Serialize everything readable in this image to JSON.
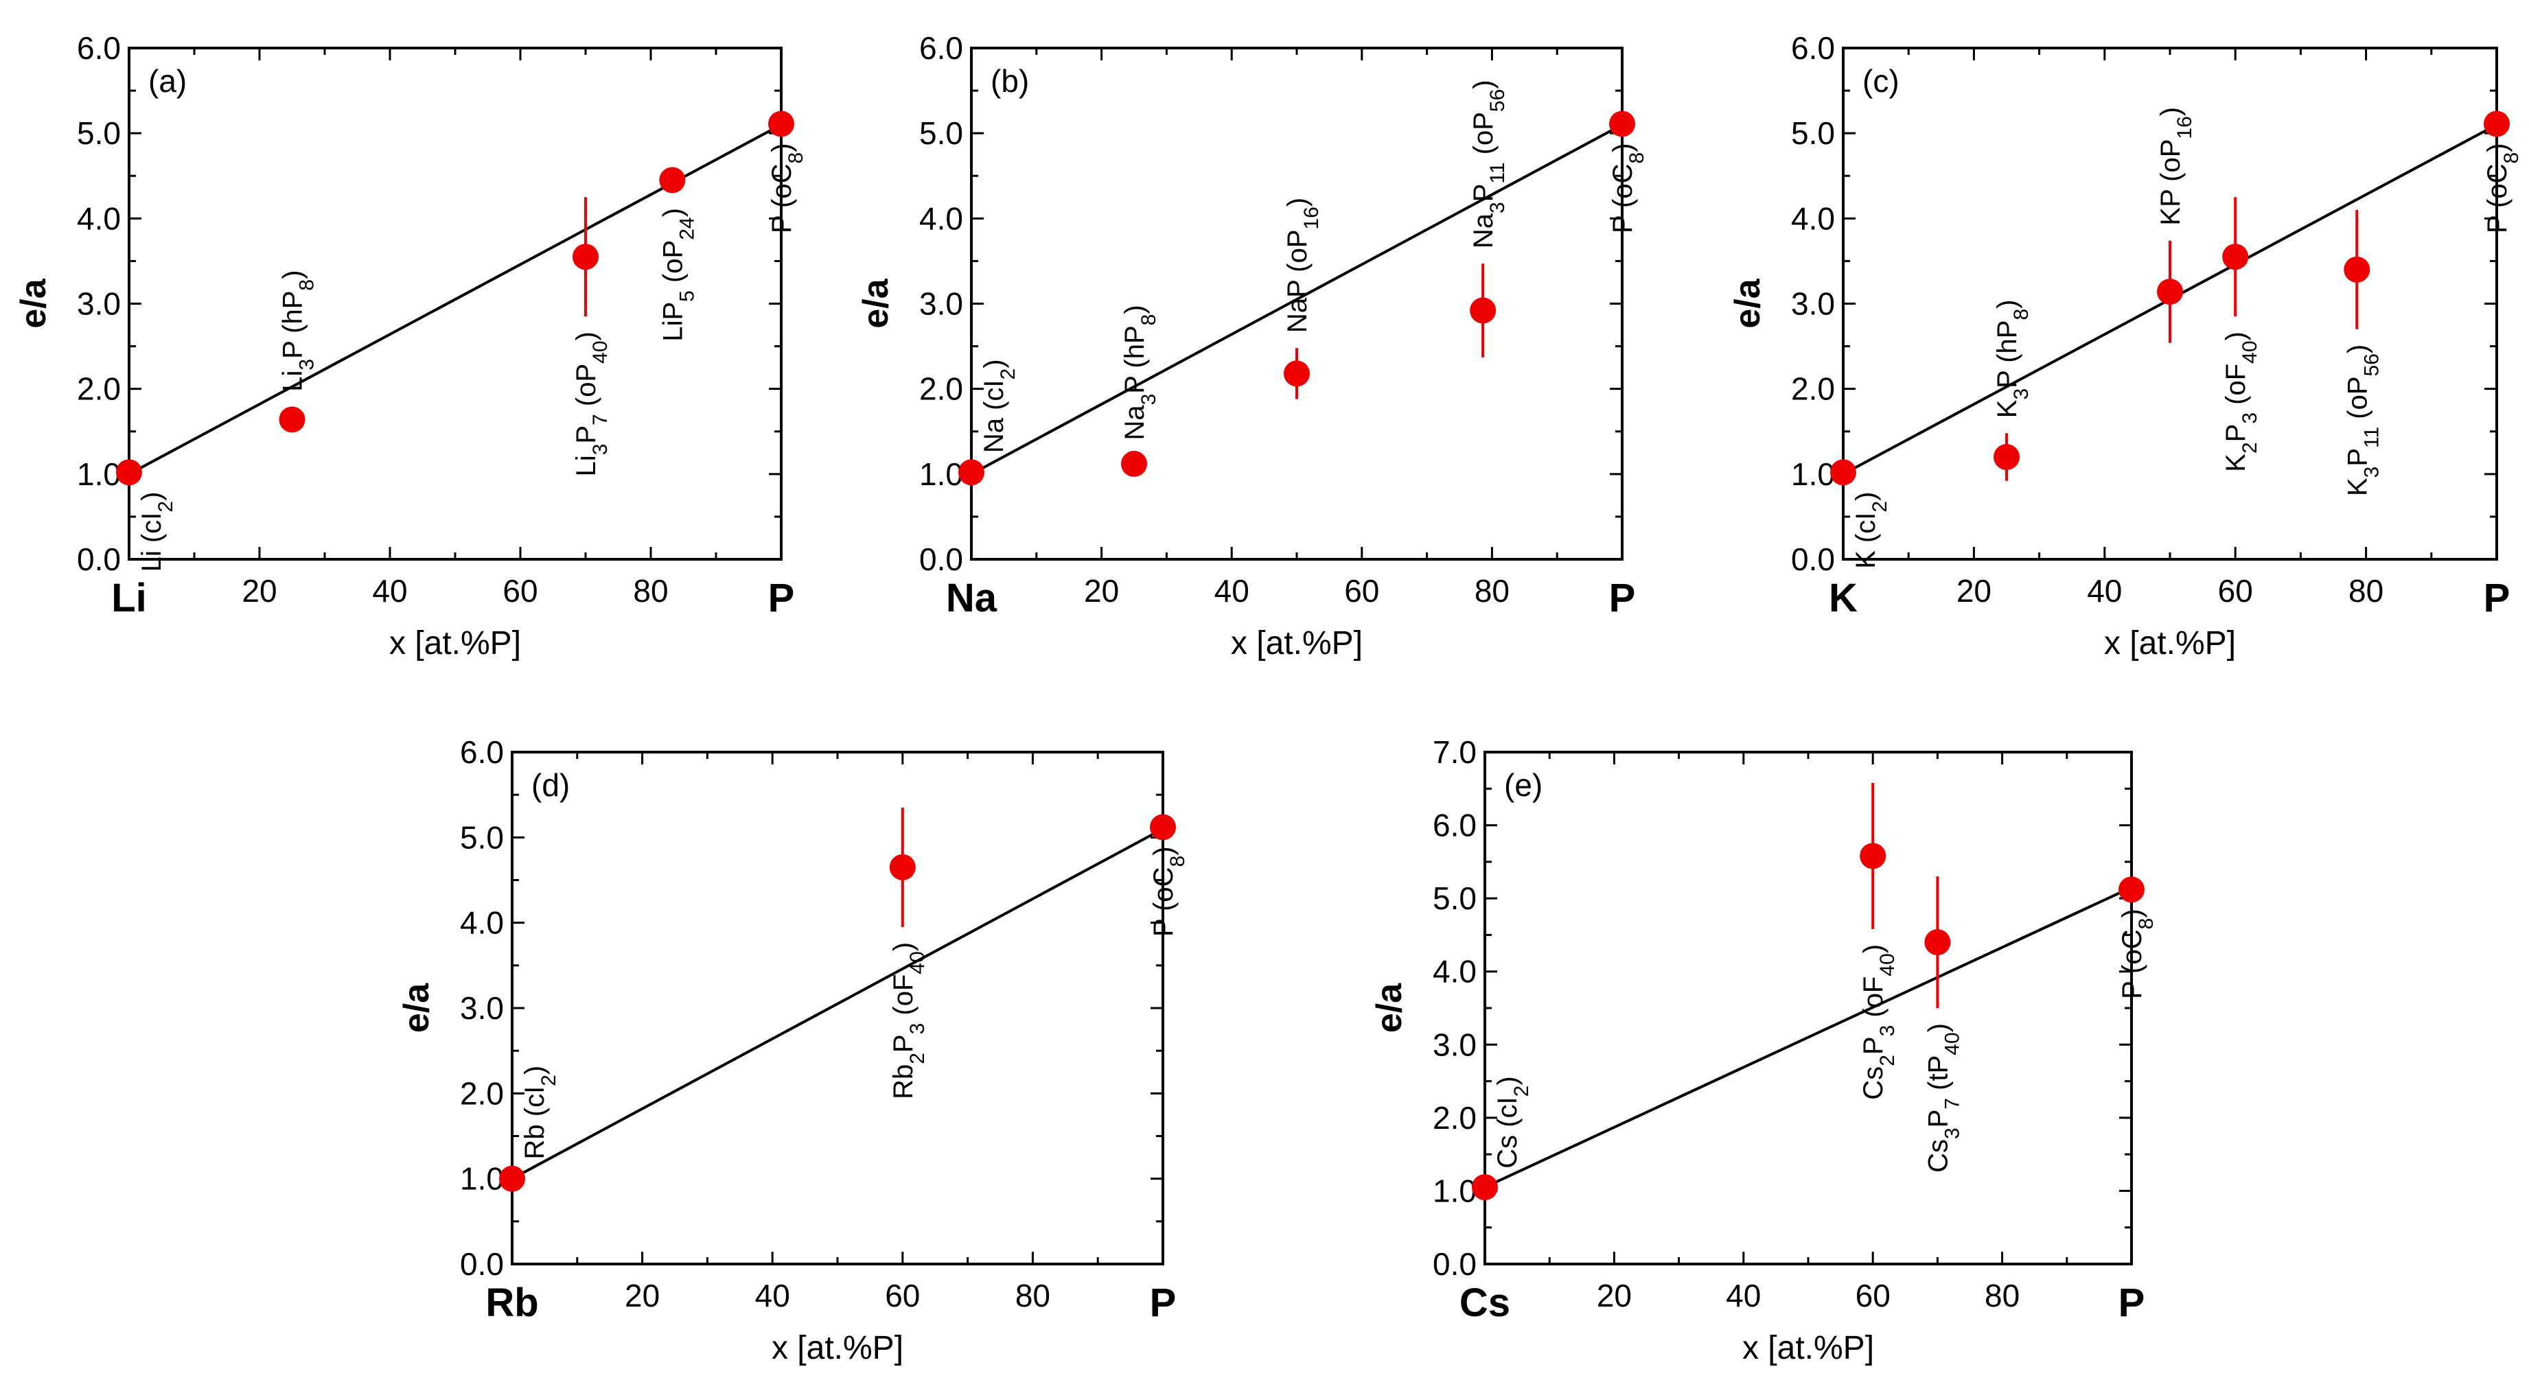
{
  "colors": {
    "point": "#ee0000",
    "line": "#000000",
    "axis": "#000000"
  },
  "chart_data": [
    {
      "type": "scatter",
      "panel": "(a)",
      "xlabel": "x [at.%P]",
      "ylabel": "e/a",
      "x_end_labels": [
        "Li",
        "P"
      ],
      "xticks": [
        "20",
        "40",
        "60",
        "80"
      ],
      "yticks": [
        "0.0",
        "1.0",
        "2.0",
        "3.0",
        "4.0",
        "5.0",
        "6.0"
      ],
      "xlim": [
        0,
        100
      ],
      "ylim": [
        0,
        6
      ],
      "fit_line": [
        [
          0,
          1.0
        ],
        [
          100,
          5.1
        ]
      ],
      "points": [
        {
          "x": 0,
          "y": 1.02,
          "err": 0.05,
          "label": "Li (cI2)",
          "pos": "below"
        },
        {
          "x": 25,
          "y": 1.64,
          "err": 0.15,
          "label": "Li3P (hP8)",
          "pos": "above"
        },
        {
          "x": 70,
          "y": 3.55,
          "err": 0.7,
          "label": "Li3P7 (oP40)",
          "pos": "below"
        },
        {
          "x": 83.3,
          "y": 4.45,
          "err": 0.15,
          "label": "LiP5 (oP24)",
          "pos": "below"
        },
        {
          "x": 100,
          "y": 5.11,
          "err": 0.05,
          "label": "P (oC8)",
          "pos": "below"
        }
      ]
    },
    {
      "type": "scatter",
      "panel": "(b)",
      "xlabel": "x [at.%P]",
      "ylabel": "e/a",
      "x_end_labels": [
        "Na",
        "P"
      ],
      "xticks": [
        "20",
        "40",
        "60",
        "80"
      ],
      "yticks": [
        "0.0",
        "1.0",
        "2.0",
        "3.0",
        "4.0",
        "5.0",
        "6.0"
      ],
      "xlim": [
        0,
        100
      ],
      "ylim": [
        0,
        6
      ],
      "fit_line": [
        [
          0,
          1.0
        ],
        [
          100,
          5.1
        ]
      ],
      "points": [
        {
          "x": 0,
          "y": 1.02,
          "err": 0.05,
          "label": "Na (cI2)",
          "pos": "above"
        },
        {
          "x": 25,
          "y": 1.12,
          "err": 0.1,
          "label": "Na3P (hP8)",
          "pos": "above"
        },
        {
          "x": 50,
          "y": 2.18,
          "err": 0.3,
          "label": "NaP (oP16)",
          "pos": "above"
        },
        {
          "x": 78.6,
          "y": 2.92,
          "err": 0.55,
          "label": "Na3P11 (oP56)",
          "pos": "above"
        },
        {
          "x": 100,
          "y": 5.11,
          "err": 0.05,
          "label": "P (oC8)",
          "pos": "below"
        }
      ]
    },
    {
      "type": "scatter",
      "panel": "(c)",
      "xlabel": "x [at.%P]",
      "ylabel": "e/a",
      "x_end_labels": [
        "K",
        "P"
      ],
      "xticks": [
        "20",
        "40",
        "60",
        "80"
      ],
      "yticks": [
        "0.0",
        "1.0",
        "2.0",
        "3.0",
        "4.0",
        "5.0",
        "6.0"
      ],
      "xlim": [
        0,
        100
      ],
      "ylim": [
        0,
        6
      ],
      "fit_line": [
        [
          0,
          1.0
        ],
        [
          100,
          5.1
        ]
      ],
      "points": [
        {
          "x": 0,
          "y": 1.02,
          "err": 0.05,
          "label": "K (cI2)",
          "pos": "below"
        },
        {
          "x": 25,
          "y": 1.2,
          "err": 0.28,
          "label": "K3P (hP8)",
          "pos": "above"
        },
        {
          "x": 50,
          "y": 3.14,
          "err": 0.6,
          "label": "KP (oP16)",
          "pos": "above"
        },
        {
          "x": 60,
          "y": 3.55,
          "err": 0.7,
          "label": "K2P3 (oF40)",
          "pos": "below"
        },
        {
          "x": 78.6,
          "y": 3.4,
          "err": 0.7,
          "label": "K3P11 (oP56)",
          "pos": "below"
        },
        {
          "x": 100,
          "y": 5.11,
          "err": 0.05,
          "label": "P (oC8)",
          "pos": "below"
        }
      ]
    },
    {
      "type": "scatter",
      "panel": "(d)",
      "xlabel": "x [at.%P]",
      "ylabel": "e/a",
      "x_end_labels": [
        "Rb",
        "P"
      ],
      "xticks": [
        "20",
        "40",
        "60",
        "80"
      ],
      "yticks": [
        "0.0",
        "1.0",
        "2.0",
        "3.0",
        "4.0",
        "5.0",
        "6.0"
      ],
      "xlim": [
        0,
        100
      ],
      "ylim": [
        0,
        6
      ],
      "fit_line": [
        [
          0,
          1.0
        ],
        [
          100,
          5.1
        ]
      ],
      "points": [
        {
          "x": 0,
          "y": 1.0,
          "err": 0.05,
          "label": "Rb (cI2)",
          "pos": "above"
        },
        {
          "x": 60,
          "y": 4.65,
          "err": 0.7,
          "label": "Rb2P3 (oF40)",
          "pos": "below"
        },
        {
          "x": 100,
          "y": 5.12,
          "err": 0.05,
          "label": "P (oC8)",
          "pos": "below"
        }
      ]
    },
    {
      "type": "scatter",
      "panel": "(e)",
      "xlabel": "x [at.%P]",
      "ylabel": "e/a",
      "x_end_labels": [
        "Cs",
        "P"
      ],
      "xticks": [
        "20",
        "40",
        "60",
        "80"
      ],
      "yticks": [
        "0.0",
        "1.0",
        "2.0",
        "3.0",
        "4.0",
        "5.0",
        "6.0",
        "7.0"
      ],
      "xlim": [
        0,
        100
      ],
      "ylim": [
        0,
        7
      ],
      "fit_line": [
        [
          0,
          1.05
        ],
        [
          100,
          5.15
        ]
      ],
      "points": [
        {
          "x": 0,
          "y": 1.05,
          "err": 0.05,
          "label": "Cs (cI2)",
          "pos": "above"
        },
        {
          "x": 60,
          "y": 5.58,
          "err": 1.0,
          "label": "Cs2P3 (oF40)",
          "pos": "below"
        },
        {
          "x": 70,
          "y": 4.4,
          "err": 0.9,
          "label": "Cs3P7 (tP40)",
          "pos": "below"
        },
        {
          "x": 100,
          "y": 5.12,
          "err": 0.05,
          "label": "P (oC8)",
          "pos": "below"
        }
      ]
    }
  ]
}
